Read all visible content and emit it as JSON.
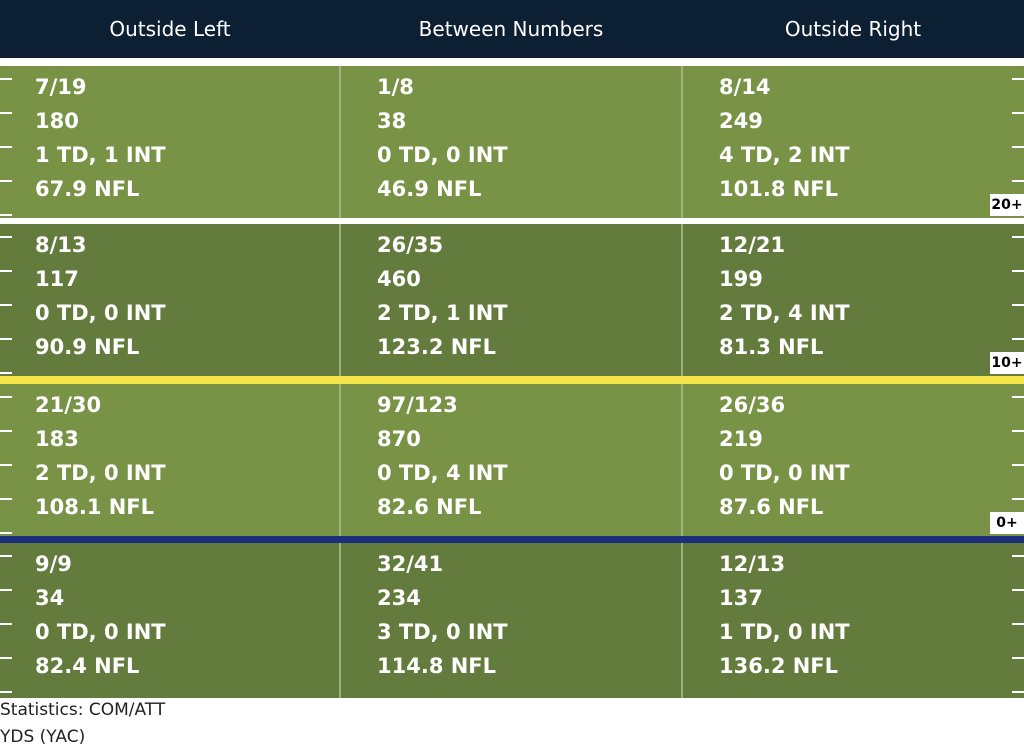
{
  "header": {
    "columns": [
      "Outside Left",
      "Between Numbers",
      "Outside Right"
    ]
  },
  "colors": {
    "header_bg": "#0d1f33",
    "light_green": "#789346",
    "dark_green": "#637b3d",
    "line_20": "#ffffff",
    "line_10": "#f5e54b",
    "line_0": "#1d2f7a"
  },
  "yard_labels": [
    "20+",
    "10+",
    "0+"
  ],
  "chart_data": {
    "type": "table",
    "columns": [
      "Outside Left",
      "Between Numbers",
      "Outside Right"
    ],
    "rows": [
      {
        "cells": [
          [
            "7/19",
            "180",
            "1 TD, 1 INT",
            "67.9 NFL"
          ],
          [
            "1/8",
            "38",
            "0 TD, 0 INT",
            "46.9 NFL"
          ],
          [
            "8/14",
            "249",
            "4 TD, 2 INT",
            "101.8 NFL"
          ]
        ]
      },
      {
        "cells": [
          [
            "8/13",
            "117",
            "0 TD, 0 INT",
            "90.9 NFL"
          ],
          [
            "26/35",
            "460",
            "2 TD, 1 INT",
            "123.2 NFL"
          ],
          [
            "12/21",
            "199",
            "2 TD, 4 INT",
            "81.3 NFL"
          ]
        ]
      },
      {
        "cells": [
          [
            "21/30",
            "183",
            "2 TD, 0 INT",
            "108.1 NFL"
          ],
          [
            "97/123",
            "870",
            "0 TD, 4 INT",
            "82.6 NFL"
          ],
          [
            "26/36",
            "219",
            "0 TD, 0 INT",
            "87.6 NFL"
          ]
        ]
      },
      {
        "cells": [
          [
            "9/9",
            "34",
            "0 TD, 0 INT",
            "82.4 NFL"
          ],
          [
            "32/41",
            "234",
            "3 TD, 0 INT",
            "114.8 NFL"
          ],
          [
            "12/13",
            "137",
            "1 TD, 0 INT",
            "136.2 NFL"
          ]
        ]
      }
    ]
  },
  "footer": {
    "line1": "Statistics: COM/ATT",
    "line2": "YDS (YAC)"
  }
}
